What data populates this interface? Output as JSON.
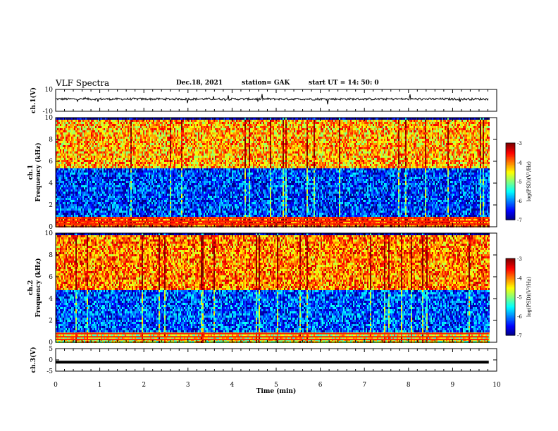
{
  "header": {
    "title": "VLF Spectra",
    "date": "Dec.18, 2021",
    "station": "station= GAK",
    "start": "start  UT =   14: 50: 0"
  },
  "chart_data": [
    {
      "type": "line",
      "panel": "waveform-ch1",
      "ylabel": "ch.1(V)",
      "ylim": [
        -10,
        10
      ],
      "yticks": [
        "10",
        "-10"
      ],
      "xlim": [
        0,
        10
      ],
      "x_extent": [
        0,
        9.82
      ],
      "series": [
        {
          "baseline": 1.2,
          "amplitude": 1.0
        }
      ]
    },
    {
      "type": "heatmap",
      "panel": "spectrogram-ch1",
      "ylabel": "Frequency (kHz)",
      "channel_label": "ch.1",
      "ylim": [
        0,
        10
      ],
      "yticks": [
        "0",
        "2",
        "4",
        "6",
        "8",
        "10"
      ],
      "xlim": [
        0,
        10
      ],
      "x_extent": [
        0,
        9.82
      ],
      "colorbar": {
        "label": "log(PSD)(V²/Hz)",
        "range": [
          -7,
          -3
        ],
        "ticks": [
          "-3",
          "-4",
          "-5",
          "-6",
          "-7"
        ]
      },
      "bands": [
        {
          "from": 0,
          "to": 1,
          "level": -3.8
        },
        {
          "from": 1,
          "to": 5.5,
          "level": -6.3
        },
        {
          "from": 5.5,
          "to": 10,
          "level": -4.2
        }
      ]
    },
    {
      "type": "heatmap",
      "panel": "spectrogram-ch2",
      "ylabel": "Frequency (kHz)",
      "channel_label": "ch.2",
      "ylim": [
        0,
        10
      ],
      "yticks": [
        "0",
        "2",
        "4",
        "6",
        "8",
        "10"
      ],
      "xlim": [
        0,
        10
      ],
      "x_extent": [
        0,
        9.82
      ],
      "colorbar": {
        "label": "log(PSD)(V²/Hz)",
        "range": [
          -7,
          -3
        ],
        "ticks": [
          "-3",
          "-4",
          "-5",
          "-6",
          "-7"
        ]
      },
      "bands": [
        {
          "from": 0,
          "to": 1,
          "level": -4.6
        },
        {
          "from": 1,
          "to": 4.8,
          "level": -6.2
        },
        {
          "from": 4.8,
          "to": 10,
          "level": -4.0
        }
      ]
    },
    {
      "type": "line",
      "panel": "waveform-ch3",
      "ylabel": "ch.3(V)",
      "ylim": [
        -5,
        5
      ],
      "yticks": [
        "5",
        "0",
        "-5"
      ],
      "xlim": [
        0,
        10
      ],
      "x_extent": [
        0,
        9.82
      ],
      "xlabel": "Time (min)",
      "xticks": [
        "0",
        "1",
        "2",
        "3",
        "4",
        "5",
        "6",
        "7",
        "8",
        "9",
        "10"
      ],
      "series": [
        {
          "baseline": -1.0,
          "amplitude": 0.0
        }
      ]
    }
  ]
}
